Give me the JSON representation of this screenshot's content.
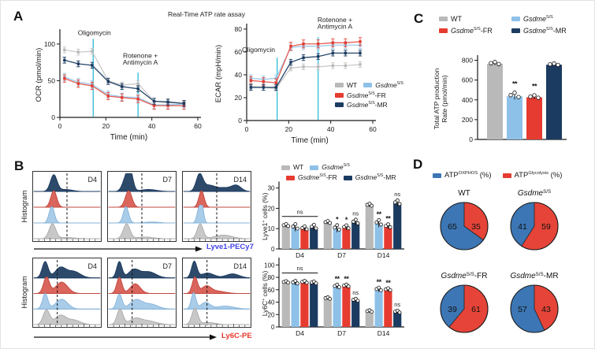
{
  "panel_a": {
    "label": "A",
    "title": "Real-Time ATP rate assay"
  },
  "panel_b": {
    "label": "B",
    "hist_ylabel": "Histogram"
  },
  "panel_c": {
    "label": "C"
  },
  "panel_d": {
    "label": "D",
    "legend": [
      {
        "color": "#3c76b4",
        "label": [
          {
            "t": "ATP"
          },
          {
            "t": "OXPHOS",
            "s": 1
          },
          {
            "t": " (%)"
          }
        ]
      },
      {
        "color": "#e63b30",
        "label": [
          {
            "t": "ATP"
          },
          {
            "t": "Glycolysis",
            "s": 1
          },
          {
            "t": " (%)"
          }
        ]
      }
    ]
  },
  "groups": {
    "order": [
      "WT",
      "SS",
      "FR",
      "MR"
    ],
    "WT": {
      "color": "#b9b9b9",
      "line": "#c9c9c9",
      "label": [
        {
          "t": "WT"
        }
      ]
    },
    "SS": {
      "color": "#8ec1e8",
      "line": "#9ccae9",
      "label": [
        {
          "t": "Gsdme",
          "i": 1
        },
        {
          "t": "S/S",
          "s": 1
        }
      ]
    },
    "FR": {
      "color": "#e63b30",
      "line": "#e65a4f",
      "label": [
        {
          "t": "Gsdme",
          "i": 1
        },
        {
          "t": "S/S",
          "s": 1
        },
        {
          "t": "-FR"
        }
      ]
    },
    "MR": {
      "color": "#1c3b60",
      "line": "#24466b",
      "label": [
        {
          "t": "Gsdme",
          "i": 1
        },
        {
          "t": "S/S",
          "s": 1
        },
        {
          "t": "-MR"
        }
      ]
    }
  },
  "hist_colors": {
    "MR": {
      "f": "#2d4a6b",
      "s": "#1c3b60"
    },
    "FR": {
      "f": "#d9655c",
      "s": "#c2473e"
    },
    "SS": {
      "f": "#a9cce9",
      "s": "#85b3d9"
    },
    "WT": {
      "f": "#c8c8c8",
      "s": "#a9a9a9"
    }
  },
  "accent": {
    "event_line": "#3cc0dc"
  },
  "chart_data": [
    {
      "id": "ocr",
      "type": "line",
      "title": "",
      "ylabel": "OCR (pmol/min)",
      "xlabel": "Time (min)",
      "ymax": 116,
      "yticks": [
        0,
        50,
        100
      ],
      "xmax": 60,
      "xticks": [
        0,
        20,
        40,
        60
      ],
      "x": [
        2,
        8,
        14,
        21,
        27,
        34,
        41,
        47,
        54
      ],
      "series": {
        "WT": [
          92,
          89,
          90,
          50,
          44,
          46,
          22,
          20,
          19
        ],
        "SS": [
          55,
          48,
          45,
          31,
          28,
          27,
          17,
          17,
          18
        ],
        "FR": [
          53,
          46,
          43,
          29,
          27,
          25,
          16,
          16,
          16
        ],
        "MR": [
          78,
          73,
          71,
          49,
          42,
          39,
          22,
          21,
          19
        ]
      },
      "err": {
        "WT": 4,
        "SS": 5,
        "FR": 5,
        "MR": 4
      },
      "events": [
        {
          "x": 14.5,
          "top": 107,
          "labels": [
            "Oligomycin"
          ],
          "lx": 15,
          "ly": 112,
          "anchor": "middle"
        },
        {
          "x": 34,
          "top": 61,
          "labels": [
            "Rotenone +",
            "Antimycin A"
          ],
          "lx": 35,
          "ly": 81,
          "anchor": "middle"
        }
      ]
    },
    {
      "id": "ecar",
      "type": "line",
      "title": "",
      "ylabel": "ECAR (mpH/min)",
      "xlabel": "Time (min)",
      "ymax": 82,
      "yticks": [
        0,
        20,
        40,
        60,
        80
      ],
      "xmax": 60,
      "xticks": [
        0,
        20,
        40,
        60
      ],
      "x": [
        2,
        8,
        14,
        21,
        27,
        34,
        41,
        47,
        54
      ],
      "series": {
        "WT": [
          30,
          29,
          28,
          46,
          47,
          47,
          48,
          48,
          49
        ],
        "SS": [
          37,
          36,
          37,
          64,
          65,
          65,
          66,
          66,
          66
        ],
        "FR": [
          35,
          34,
          33,
          65,
          67,
          67,
          68,
          68,
          69
        ],
        "MR": [
          29,
          29,
          29,
          51,
          55,
          56,
          59,
          59,
          59
        ]
      },
      "err": {
        "WT": 2.5,
        "SS": 3,
        "FR": 3.5,
        "MR": 2.5
      },
      "events": [
        {
          "x": 14.5,
          "top": 55,
          "labels": [
            "Oligomycin"
          ],
          "lx": 13.5,
          "ly": 60,
          "anchor": "end"
        },
        {
          "x": 34,
          "top": 73,
          "labels": [
            "Rotenone +",
            "Antimycin A"
          ],
          "lx": 42,
          "ly": 86,
          "anchor": "middle"
        }
      ]
    },
    {
      "id": "lyve1_bars",
      "type": "bar",
      "ylabel": [
        {
          "t": "Lyve1"
        },
        {
          "t": "+",
          "s": 1
        },
        {
          "t": " cells (%)"
        }
      ],
      "ymax": 32,
      "yticks": [
        0,
        10,
        20,
        30
      ],
      "cats": [
        "D4",
        "D7",
        "D14"
      ],
      "values": {
        "WT": [
          11.5,
          13,
          21.5
        ],
        "SS": [
          10.5,
          10,
          12.5
        ],
        "FR": [
          10,
          10.5,
          11
        ],
        "MR": [
          10.5,
          13,
          22.5
        ]
      },
      "err": {
        "WT": 0.8,
        "SS": 1.8,
        "FR": 1.2,
        "MR": 1.5
      },
      "sig": [
        [
          "",
          "",
          "",
          ""
        ],
        [
          "",
          "*",
          "*",
          "ns"
        ],
        [
          "",
          "**",
          "**",
          "ns"
        ]
      ],
      "bracket": {
        "group": 0,
        "label": "ns",
        "y": 16
      }
    },
    {
      "id": "ly6c_bars",
      "type": "bar",
      "ylabel": [
        {
          "t": "Ly6C"
        },
        {
          "t": "+",
          "s": 1
        },
        {
          "t": " cells (%)"
        }
      ],
      "ymax": 108,
      "yticks": [
        0,
        20,
        40,
        60,
        80,
        100
      ],
      "cats": [
        "D4",
        "D7",
        "D14"
      ],
      "values": {
        "WT": [
          72,
          46,
          25
        ],
        "SS": [
          71,
          65,
          60
        ],
        "FR": [
          72,
          66,
          60
        ],
        "MR": [
          71,
          43,
          24
        ]
      },
      "err": {
        "WT": 2,
        "SS": 3.5,
        "FR": 2.5,
        "MR": 2.5
      },
      "sig": [
        [
          "",
          "",
          "",
          ""
        ],
        [
          "",
          "**",
          "**",
          "ns"
        ],
        [
          "",
          "**",
          "**",
          "ns"
        ]
      ],
      "bracket": {
        "group": 0,
        "label": "ns",
        "y": 87
      }
    },
    {
      "id": "total_atp",
      "type": "bar",
      "ylabel": [
        "Total ATP production",
        "Rate (pmol/min)"
      ],
      "ymax": 820,
      "yticks": [
        0,
        200,
        400,
        600,
        800
      ],
      "cats": [
        "WT",
        "SS",
        "FR",
        "MR"
      ],
      "values": [
        765,
        435,
        425,
        755
      ],
      "err": [
        15,
        32,
        18,
        10
      ],
      "sig": [
        "",
        "**",
        "**",
        ""
      ]
    },
    {
      "id": "atp_fraction_pies",
      "type": "pie",
      "unit": "%",
      "blue": "#3c76b4",
      "red": "#e64438",
      "pies": [
        {
          "group": "WT",
          "oxphos": 65,
          "glycolysis": 35
        },
        {
          "group": "SS",
          "oxphos": 41,
          "glycolysis": 59
        },
        {
          "group": "FR",
          "oxphos": 39,
          "glycolysis": 61
        },
        {
          "group": "MR",
          "oxphos": 57,
          "glycolysis": 43
        }
      ]
    },
    {
      "id": "flow_histograms",
      "type": "histogram",
      "rows": [
        {
          "marker": "Lyve1-PECy7",
          "marker_color": "#4343e8",
          "dash": 0.5,
          "panels": [
            {
              "day": "D4",
              "traces": {
                "MR": [
                  [
                    0.3,
                    0.05,
                    1
                  ],
                  [
                    0.48,
                    0.1,
                    0.12
                  ]
                ],
                "FR": [
                  [
                    0.3,
                    0.045,
                    1
                  ]
                ],
                "SS": [
                  [
                    0.27,
                    0.04,
                    1
                  ]
                ],
                "WT": [
                  [
                    0.28,
                    0.05,
                    0.9
                  ],
                  [
                    0.5,
                    0.12,
                    0.07
                  ]
                ]
              }
            },
            {
              "day": "D7",
              "traces": {
                "MR": [
                  [
                    0.27,
                    0.055,
                    0.95
                  ],
                  [
                    0.33,
                    0.04,
                    0.85
                  ],
                  [
                    0.6,
                    0.12,
                    0.12
                  ]
                ],
                "FR": [
                  [
                    0.3,
                    0.05,
                    1
                  ]
                ],
                "SS": [
                  [
                    0.26,
                    0.04,
                    1
                  ],
                  [
                    0.65,
                    0.1,
                    0.06
                  ]
                ],
                "WT": [
                  [
                    0.27,
                    0.05,
                    0.9
                  ],
                  [
                    0.55,
                    0.12,
                    0.1
                  ]
                ]
              }
            },
            {
              "day": "D14",
              "traces": {
                "MR": [
                  [
                    0.24,
                    0.05,
                    1
                  ],
                  [
                    0.38,
                    0.09,
                    0.35
                  ],
                  [
                    0.62,
                    0.12,
                    0.22
                  ],
                  [
                    0.8,
                    0.07,
                    0.32
                  ]
                ],
                "FR": [
                  [
                    0.27,
                    0.04,
                    1
                  ]
                ],
                "SS": [
                  [
                    0.23,
                    0.03,
                    0.85
                  ],
                  [
                    0.28,
                    0.025,
                    0.95
                  ]
                ],
                "WT": [
                  [
                    0.25,
                    0.045,
                    0.9
                  ],
                  [
                    0.6,
                    0.13,
                    0.22
                  ]
                ]
              }
            }
          ]
        },
        {
          "marker": "Ly6C-PE",
          "marker_color": "#e8392e",
          "dash": 0.36,
          "panels": [
            {
              "day": "D4",
              "traces": {
                "MR": [
                  [
                    0.17,
                    0.045,
                    1
                  ],
                  [
                    0.4,
                    0.08,
                    0.62
                  ],
                  [
                    0.6,
                    0.1,
                    0.4
                  ]
                ],
                "FR": [
                  [
                    0.19,
                    0.045,
                    1
                  ],
                  [
                    0.42,
                    0.09,
                    0.7
                  ]
                ],
                "SS": [
                  [
                    0.17,
                    0.04,
                    0.95
                  ],
                  [
                    0.42,
                    0.09,
                    0.6
                  ]
                ],
                "WT": [
                  [
                    0.19,
                    0.05,
                    0.9
                  ],
                  [
                    0.4,
                    0.08,
                    0.55
                  ],
                  [
                    0.6,
                    0.1,
                    0.28
                  ]
                ]
              }
            },
            {
              "day": "D7",
              "traces": {
                "MR": [
                  [
                    0.16,
                    0.04,
                    1
                  ],
                  [
                    0.38,
                    0.08,
                    0.5
                  ],
                  [
                    0.6,
                    0.11,
                    0.38
                  ]
                ],
                "FR": [
                  [
                    0.16,
                    0.04,
                    1
                  ],
                  [
                    0.4,
                    0.075,
                    0.6
                  ]
                ],
                "SS": [
                  [
                    0.16,
                    0.04,
                    0.92
                  ],
                  [
                    0.41,
                    0.09,
                    0.55
                  ],
                  [
                    0.63,
                    0.11,
                    0.3
                  ]
                ],
                "WT": [
                  [
                    0.17,
                    0.045,
                    0.95
                  ],
                  [
                    0.4,
                    0.09,
                    0.35
                  ],
                  [
                    0.6,
                    0.12,
                    0.22
                  ]
                ]
              }
            },
            {
              "day": "D14",
              "traces": {
                "MR": [
                  [
                    0.16,
                    0.04,
                    1
                  ],
                  [
                    0.36,
                    0.1,
                    0.3
                  ],
                  [
                    0.74,
                    0.1,
                    0.25
                  ]
                ],
                "FR": [
                  [
                    0.17,
                    0.04,
                    1
                  ],
                  [
                    0.34,
                    0.07,
                    0.42
                  ],
                  [
                    0.5,
                    0.12,
                    0.15
                  ]
                ],
                "SS": [
                  [
                    0.15,
                    0.035,
                    1
                  ],
                  [
                    0.33,
                    0.07,
                    0.4
                  ],
                  [
                    0.63,
                    0.13,
                    0.18
                  ]
                ],
                "WT": [
                  [
                    0.17,
                    0.045,
                    1
                  ],
                  [
                    0.38,
                    0.1,
                    0.13
                  ]
                ]
              }
            }
          ]
        }
      ]
    }
  ]
}
